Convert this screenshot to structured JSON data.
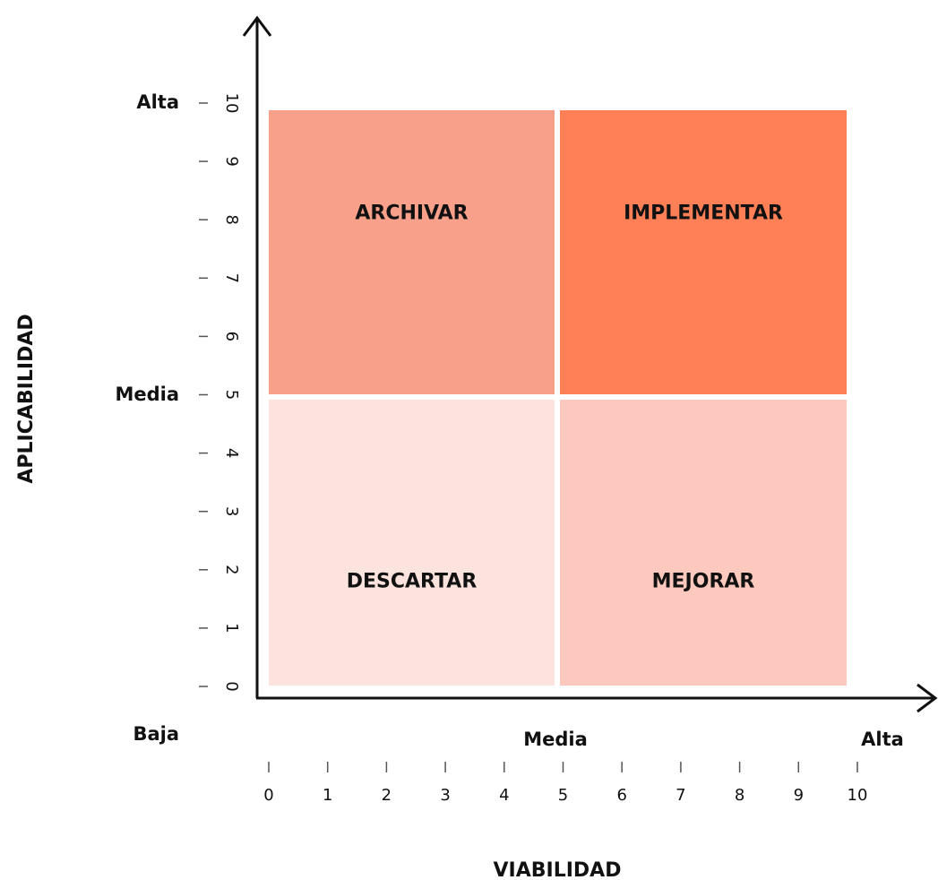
{
  "axes": {
    "y": {
      "title": "APLICABILIDAD",
      "ticks": [
        0,
        1,
        2,
        3,
        4,
        5,
        6,
        7,
        8,
        9,
        10
      ],
      "levels": [
        "Alta",
        "Media",
        "Baja"
      ]
    },
    "x": {
      "title": "VIABILIDAD",
      "ticks": [
        0,
        1,
        2,
        3,
        4,
        5,
        6,
        7,
        8,
        9,
        10
      ],
      "levels": [
        "Media",
        "Alta"
      ]
    }
  },
  "quadrants": [
    {
      "label": "ARCHIVAR",
      "color": "#f9a08a"
    },
    {
      "label": "IMPLEMENTAR",
      "color": "#ff8057"
    },
    {
      "label": "DESCARTAR",
      "color": "#fde3de"
    },
    {
      "label": "MEJORAR",
      "color": "#fdc8bd"
    }
  ]
}
